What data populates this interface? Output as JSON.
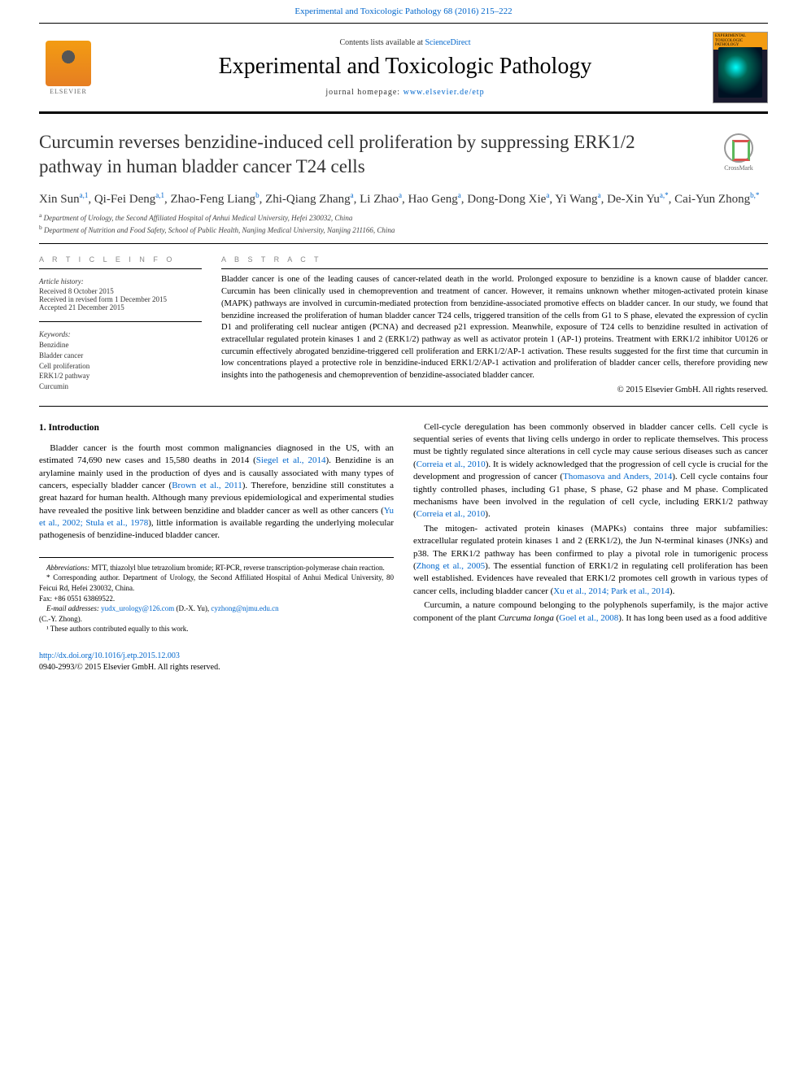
{
  "top_link": {
    "prefix": "",
    "journal": "Experimental and Toxicologic Pathology 68 (2016) 215–222"
  },
  "header": {
    "contents_prefix": "Contents lists available at ",
    "contents_link": "ScienceDirect",
    "journal_name": "Experimental and Toxicologic Pathology",
    "homepage_prefix": "journal homepage: ",
    "homepage_url": "www.elsevier.de/etp",
    "elsevier_label": "ELSEVIER",
    "cover_top": "EXPERIMENTAL TOXICOLOGIC PATHOLOGY"
  },
  "crossmark_label": "CrossMark",
  "title": "Curcumin reverses benzidine-induced cell proliferation by suppressing ERK1/2 pathway in human bladder cancer T24 cells",
  "authors_html": "Xin Sun<sup>a,1</sup>, Qi-Fei Deng<sup>a,1</sup>, Zhao-Feng Liang<sup>b</sup>, Zhi-Qiang Zhang<sup>a</sup>, Li Zhao<sup>a</sup>, Hao Geng<sup>a</sup>, Dong-Dong Xie<sup>a</sup>, Yi Wang<sup>a</sup>, De-Xin Yu<sup>a,*</sup>, Cai-Yun Zhong<sup>b,*</sup>",
  "affiliations": [
    {
      "sup": "a",
      "text": "Department of Urology, the Second Affiliated Hospital of Anhui Medical University, Hefei 230032, China"
    },
    {
      "sup": "b",
      "text": "Department of Nutrition and Food Safety, School of Public Health, Nanjing Medical University, Nanjing 211166, China"
    }
  ],
  "info": {
    "heading_info": "A R T I C L E  I N F O",
    "heading_abs": "A B S T R A C T",
    "history_label": "Article history:",
    "history": [
      "Received 8 October 2015",
      "Received in revised form 1 December 2015",
      "Accepted 21 December 2015"
    ],
    "keywords_label": "Keywords:",
    "keywords": [
      "Benzidine",
      "Bladder cancer",
      "Cell proliferation",
      "ERK1/2 pathway",
      "Curcumin"
    ]
  },
  "abstract": "Bladder cancer is one of the leading causes of cancer-related death in the world. Prolonged exposure to benzidine is a known cause of bladder cancer. Curcumin has been clinically used in chemoprevention and treatment of cancer. However, it remains unknown whether mitogen-activated protein kinase (MAPK) pathways are involved in curcumin-mediated protection from benzidine-associated promotive effects on bladder cancer. In our study, we found that benzidine increased the proliferation of human bladder cancer T24 cells, triggered transition of the cells from G1 to S phase, elevated the expression of cyclin D1 and proliferating cell nuclear antigen (PCNA) and decreased p21 expression. Meanwhile, exposure of T24 cells to benzidine resulted in activation of extracellular regulated protein kinases 1 and 2 (ERK1/2) pathway as well as activator protein 1 (AP-1) proteins. Treatment with ERK1/2 inhibitor U0126 or curcumin effectively abrogated benzidine-triggered cell proliferation and ERK1/2/AP-1 activation. These results suggested for the first time that curcumin in low concentrations played a protective role in benzidine-induced ERK1/2/AP-1 activation and proliferation of bladder cancer cells, therefore providing new insights into the pathogenesis and chemoprevention of benzidine-associated bladder cancer.",
  "copyright": "© 2015 Elsevier GmbH. All rights reserved.",
  "section1_heading": "1. Introduction",
  "para1_a": "Bladder cancer is the fourth most common malignancies diagnosed in the US, with an estimated 74,690 new cases and 15,580 deaths in 2014 (",
  "para1_c1": "Siegel et al., 2014",
  "para1_b": "). Benzidine is an arylamine mainly used in the production of dyes and is causally associated with many types of cancers, especially bladder cancer (",
  "para1_c2": "Brown et al., 2011",
  "para1_c": "). Therefore, benzidine still constitutes a great hazard for human health. Although many previous epidemiological and experimental studies have revealed the positive link between benzidine and bladder cancer as well as other cancers (",
  "para1_c3": "Yu et al., 2002; Stula et al., 1978",
  "para1_d": "), little information is available regarding the underlying molecular pathogenesis of benzidine-induced bladder cancer.",
  "para2_a": "Cell-cycle deregulation has been commonly observed in bladder cancer cells. Cell cycle is sequential series of events that living cells undergo in order to replicate themselves. This process must be tightly regulated since alterations in cell cycle may cause serious diseases such as cancer (",
  "para2_c1": "Correia et al., 2010",
  "para2_b": "). It is widely acknowledged that the progression of cell cycle is crucial for the development and progression of cancer (",
  "para2_c2": "Thomasova and Anders, 2014",
  "para2_c": "). Cell cycle contains four tightly controlled phases, including G1 phase, S phase, G2 phase and M phase. Complicated mechanisms have been involved in the regulation of cell cycle, including ERK1/2 pathway (",
  "para2_c3": "Correia et al., 2010",
  "para2_d": ").",
  "para3_a": "The mitogen- activated protein kinases (MAPKs) contains three major subfamilies: extracellular regulated protein kinases 1 and 2 (ERK1/2), the Jun N-terminal kinases (JNKs) and p38. The ERK1/2 pathway has been confirmed to play a pivotal role in tumorigenic process (",
  "para3_c1": "Zhong et al., 2005",
  "para3_b": "). The essential function of ERK1/2 in regulating cell proliferation has been well established. Evidences have revealed that ERK1/2 promotes cell growth in various types of cancer cells, including bladder cancer (",
  "para3_c2": "Xu et al., 2014; Park et al., 2014",
  "para3_c": ").",
  "para4_a": "Curcumin, a nature compound belonging to the polyphenols superfamily, is the major active component of the plant ",
  "para4_it": "Curcuma longa",
  "para4_b": " (",
  "para4_c1": "Goel et al., 2008",
  "para4_c": "). It has long been used as a food additive",
  "footnotes": {
    "abbrev_label": "Abbreviations:",
    "abbrev": " MTT, thiazolyl blue tetrazolium bromide; RT-PCR, reverse transcription-polymerase chain reaction.",
    "corr_label": "* Corresponding author.",
    "corr": " Department of Urology, the Second Affiliated Hospital of Anhui Medical University, 80 Feicui Rd, Hefei 230032, China.",
    "fax": "Fax: +86 0551 63869522.",
    "email_label": "E-mail addresses:",
    "email1": "yudx_urology@126.com",
    "email1_who": " (D.-X. Yu), ",
    "email2": "cyzhong@njmu.edu.cn",
    "email2_who": " (C.-Y. Zhong).",
    "note1": "¹ These authors contributed equally to this work."
  },
  "footer": {
    "doi": "http://dx.doi.org/10.1016/j.etp.2015.12.003",
    "issn": "0940-2993/© 2015 Elsevier GmbH. All rights reserved."
  },
  "colors": {
    "link": "#0066cc",
    "text": "#000000",
    "muted": "#888888",
    "rule": "#000000"
  }
}
